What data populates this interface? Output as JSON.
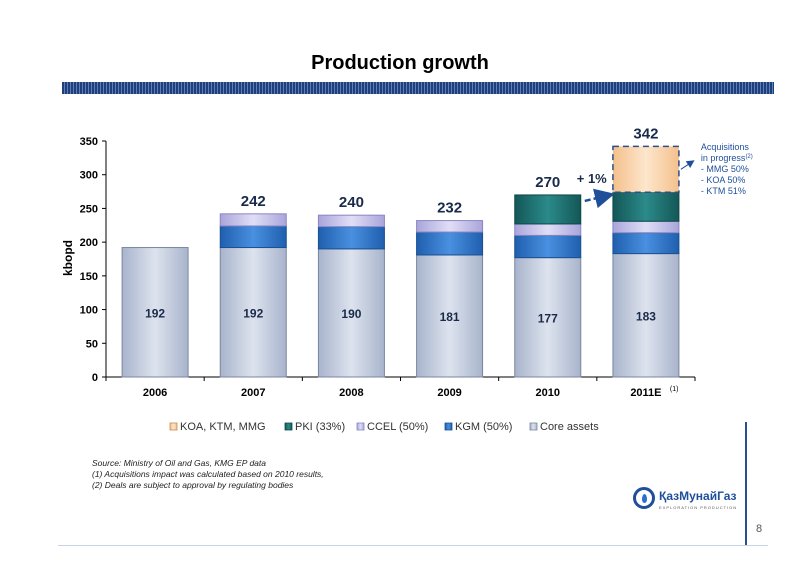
{
  "title": "Production growth",
  "chart_data": {
    "type": "bar",
    "stacked": true,
    "categories": [
      "2006",
      "2007",
      "2008",
      "2009",
      "2010",
      "2011E"
    ],
    "category_superscripts": [
      "",
      "",
      "",
      "",
      "",
      "(1)"
    ],
    "ylabel": "kbopd",
    "ylim": [
      0,
      350
    ],
    "yticks": [
      0,
      50,
      100,
      150,
      200,
      250,
      300,
      350
    ],
    "series": [
      {
        "name": "Core assets",
        "color": "#bfc9de",
        "values": [
          192,
          192,
          190,
          181,
          177,
          183
        ]
      },
      {
        "name": "KGM (50%)",
        "color": "#2f74c8",
        "values": [
          0,
          32,
          33,
          34,
          33,
          31
        ]
      },
      {
        "name": "CCEL (50%)",
        "color": "#c2bfe8",
        "values": [
          0,
          18,
          17,
          17,
          17,
          17
        ]
      },
      {
        "name": "PKI (33%)",
        "color": "#1d6e6e",
        "values": [
          0,
          0,
          0,
          0,
          43,
          43
        ]
      },
      {
        "name": "KOA, KTM, MMG",
        "color": "#f8d3aa",
        "values": [
          0,
          0,
          0,
          0,
          0,
          68
        ]
      }
    ],
    "core_labels": [
      "192",
      "192",
      "190",
      "181",
      "177",
      "183"
    ],
    "total_labels": [
      "",
      "242",
      "240",
      "232",
      "270",
      "342"
    ],
    "annotation_growth": "+ 1%",
    "annotation_acquisitions": [
      "Acquisitions",
      "in progress",
      "- MMG 50%",
      "- KOA 50%",
      "- KTM 51%"
    ],
    "annotation_acquisitions_sup": "(2)"
  },
  "footnotes": [
    "Source: Ministry of Oil and Gas, KMG EP data",
    "(1) Acquisitions impact was calculated based on 2010 results,",
    "(2) Deals are subject to approval by regulating bodies"
  ],
  "logo_text": "ҚазМунайГаз",
  "logo_sub": "EXPLORATION PRODUCTION",
  "page_number": "8"
}
